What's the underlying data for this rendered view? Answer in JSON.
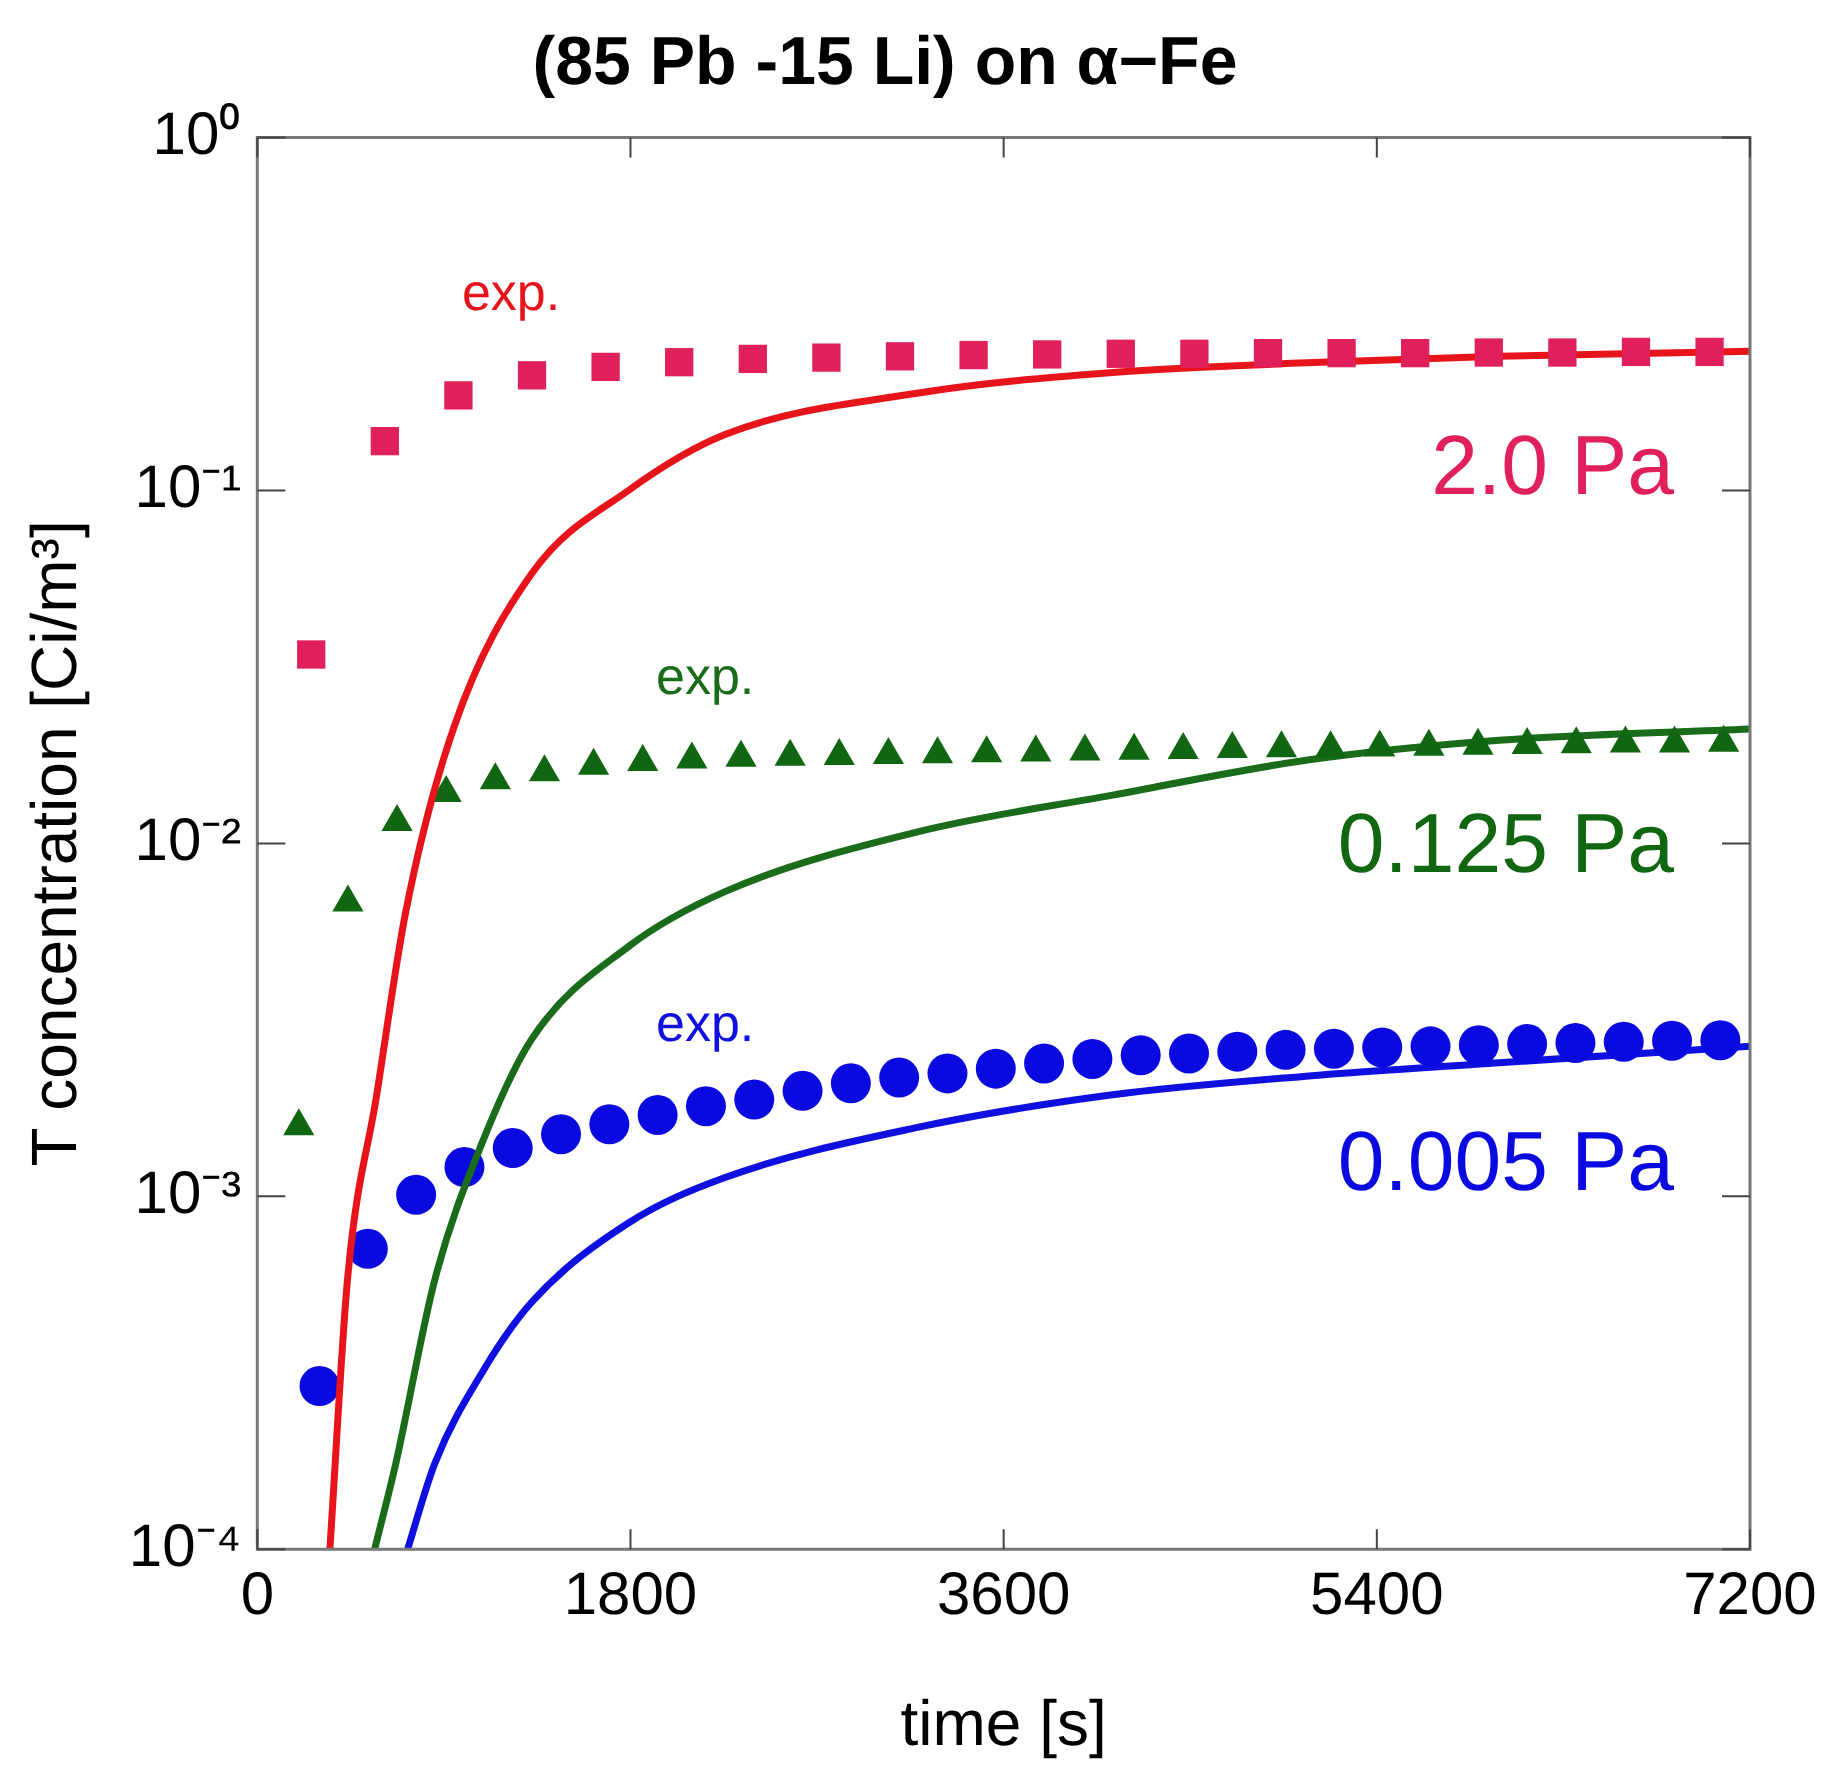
{
  "chart_data": {
    "type": "scatter",
    "title": "(85 Pb -15 Li) on α−Fe",
    "xlabel": "time [s]",
    "ylabel": "T concentration [Ci/m³]",
    "xlim": [
      0,
      7200
    ],
    "xticks": [
      0,
      1800,
      3600,
      5400,
      7200
    ],
    "ylim": [
      0.0001,
      1
    ],
    "yticks": [
      {
        "value": 1,
        "label": "10⁰"
      },
      {
        "value": 0.1,
        "label": "10⁻¹"
      },
      {
        "value": 0.01,
        "label": "10⁻²"
      },
      {
        "value": 0.001,
        "label": "10⁻³"
      },
      {
        "value": 0.0001,
        "label": "10⁻⁴"
      }
    ],
    "log": "y",
    "grid": false,
    "legend": false,
    "series": [
      {
        "name": "exp.",
        "marker": "square",
        "color": "#e0205a",
        "x": [
          260,
          615,
          970,
          1325,
          1680,
          2035,
          2390,
          2745,
          3100,
          3455,
          3810,
          4165,
          4520,
          4875,
          5230,
          5585,
          5940,
          6295,
          6650,
          7005
        ],
        "values": [
          0.0343,
          0.138,
          0.186,
          0.212,
          0.224,
          0.231,
          0.236,
          0.238,
          0.24,
          0.242,
          0.243,
          0.244,
          0.244,
          0.245,
          0.245,
          0.245,
          0.246,
          0.246,
          0.247,
          0.247
        ]
      },
      {
        "type": "line",
        "color": "#e8141c",
        "x": [
          350,
          435,
          576,
          716,
          949,
          1322,
          1790,
          2256,
          3190,
          4125,
          5058,
          5990,
          7200
        ],
        "values": [
          0.0001,
          0.00058,
          0.00194,
          0.0064,
          0.0214,
          0.058,
          0.1,
          0.144,
          0.189,
          0.216,
          0.23,
          0.24,
          0.248
        ]
      },
      {
        "name": "exp.",
        "marker": "triangle",
        "color": "#116611",
        "x": [
          200,
          437,
          674,
          911,
          1148,
          1385,
          1622,
          1859,
          2096,
          2333,
          2570,
          2807,
          3044,
          3281,
          3518,
          3755,
          3992,
          4229,
          4466,
          4703,
          4940,
          5177,
          5414,
          5651,
          5888,
          6125,
          6362,
          6599,
          6836,
          7073
        ],
        "values": [
          0.00158,
          0.0068,
          0.0115,
          0.0139,
          0.0151,
          0.0159,
          0.0166,
          0.017,
          0.0173,
          0.0175,
          0.0176,
          0.0177,
          0.0178,
          0.0179,
          0.018,
          0.0181,
          0.0182,
          0.0183,
          0.0184,
          0.0185,
          0.0186,
          0.0186,
          0.0187,
          0.0188,
          0.0189,
          0.019,
          0.0191,
          0.0192,
          0.0192,
          0.0193
        ]
      },
      {
        "type": "line",
        "color": "#1a6b1a",
        "x": [
          566,
          668,
          856,
          1089,
          1322,
          1790,
          2256,
          3190,
          4125,
          5058,
          5990,
          7200
        ],
        "values": [
          0.0001,
          0.000175,
          0.00058,
          0.00144,
          0.00278,
          0.0051,
          0.0073,
          0.0108,
          0.0137,
          0.0172,
          0.0196,
          0.0211
        ]
      },
      {
        "name": "exp.",
        "marker": "circle",
        "color": "#0a0ae0",
        "x": [
          300,
          533,
          766,
          999,
          1232,
          1465,
          1698,
          1931,
          2164,
          2397,
          2630,
          2863,
          3096,
          3329,
          3562,
          3795,
          4028,
          4261,
          4494,
          4727,
          4960,
          5193,
          5426,
          5659,
          5892,
          6125,
          6358,
          6591,
          6824,
          7057
        ],
        "values": [
          0.00029,
          0.00071,
          0.00101,
          0.00121,
          0.00137,
          0.0015,
          0.0016,
          0.0017,
          0.0018,
          0.00188,
          0.00199,
          0.00209,
          0.00217,
          0.00223,
          0.0023,
          0.00238,
          0.00245,
          0.00251,
          0.00254,
          0.00257,
          0.0026,
          0.00262,
          0.00264,
          0.00266,
          0.00268,
          0.0027,
          0.00272,
          0.00274,
          0.00276,
          0.00277
        ]
      },
      {
        "type": "line",
        "color": "#0f0fe0",
        "x": [
          725,
          856,
          1089,
          1322,
          1790,
          2256,
          3190,
          4125,
          5058,
          5990,
          7200
        ],
        "values": [
          0.0001,
          0.000175,
          0.00032,
          0.0005,
          0.00084,
          0.00113,
          0.00157,
          0.00194,
          0.00219,
          0.00239,
          0.00266
        ]
      }
    ],
    "annotations": [
      "2.0 Pa",
      "0.125 Pa",
      "0.005 Pa"
    ]
  }
}
